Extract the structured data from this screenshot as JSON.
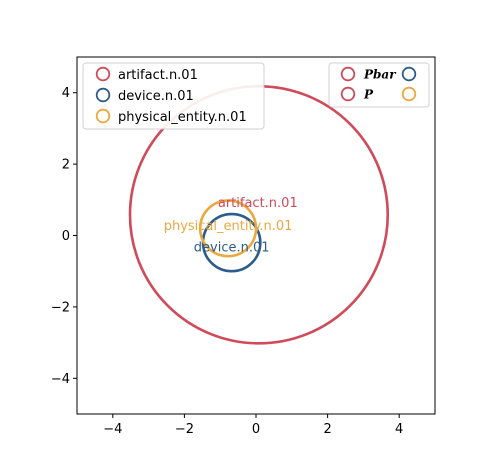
{
  "chart_data": {
    "type": "scatter",
    "xlim": [
      -5,
      5
    ],
    "ylim": [
      -5,
      5
    ],
    "x_ticks": [
      -4,
      -2,
      0,
      2,
      4
    ],
    "y_ticks": [
      -4,
      -2,
      0,
      2,
      4
    ],
    "x_tick_labels": [
      "−4",
      "−2",
      "0",
      "2",
      "4"
    ],
    "y_tick_labels": [
      "−4",
      "−2",
      "0",
      "2",
      "4"
    ],
    "grid": false,
    "colors": {
      "artifact": "#d04a5a",
      "device": "#2e5c8a",
      "physical_entity": "#eaa940"
    },
    "circles": [
      {
        "name": "artifact.n.01",
        "color": "#d04a5a",
        "cx": 0.08,
        "cy": 0.58,
        "r": 3.6,
        "label_x": 0.05,
        "label_y": 0.8
      },
      {
        "name": "device.n.01",
        "color": "#2e5c8a",
        "cx": -0.68,
        "cy": -0.2,
        "r": 0.8,
        "label_x": -0.68,
        "label_y": -0.45
      },
      {
        "name": "physical_entity.n.01",
        "color": "#eaa940",
        "cx": -0.78,
        "cy": 0.2,
        "r": 0.78,
        "label_x": -0.78,
        "label_y": 0.15
      }
    ],
    "legend_main": {
      "placement": "top-left",
      "entries": [
        {
          "label": "artifact.n.01",
          "color": "#d04a5a"
        },
        {
          "label": "device.n.01",
          "color": "#2e5c8a"
        },
        {
          "label": "physical_entity.n.01",
          "color": "#eaa940"
        }
      ]
    },
    "legend_pp": {
      "placement": "top-right",
      "rows": [
        {
          "label": "Pbar",
          "colors": [
            "#d04a5a",
            "#2e5c8a"
          ]
        },
        {
          "label": "P",
          "colors": [
            "#d04a5a",
            "#eaa940"
          ]
        }
      ]
    }
  }
}
